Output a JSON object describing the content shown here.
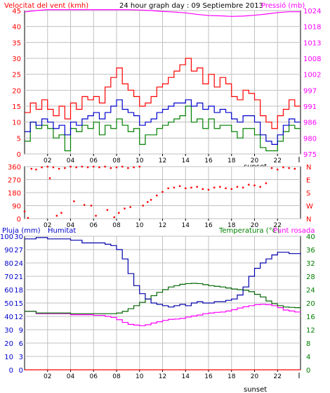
{
  "colors": {
    "wind": "#ff0000",
    "gust": "#ff0000",
    "avg": "#0000cc",
    "speed": "#008000",
    "pressure": "#ff00ff",
    "direction": "#ff0000",
    "humidity": "#0000aa",
    "temperature": "#006600",
    "dewpoint": "#ff00ff",
    "rain": "#ff0000",
    "axis_left": "#ff0000",
    "axis_right": "#ff00ff",
    "axis_blue": "#0000cc",
    "axis_green": "#008000",
    "grid": "#c0c0c0",
    "frame": "#000000"
  },
  "chart_data": [
    {
      "type": "line",
      "title": "24 hour graph day : 09 Septiembre 2013",
      "left_label": "Velocitat del vent (kmh)",
      "right_label": "Pressió (mb)",
      "yticks_left": [
        "0",
        "5",
        "10",
        "15",
        "20",
        "25",
        "30",
        "35",
        "40",
        "45"
      ],
      "ylim_left": [
        0,
        45
      ],
      "yticks_right": [
        "975",
        "980",
        "986",
        "991",
        "997",
        "1002",
        "1008",
        "1013",
        "1018",
        "1024"
      ],
      "ylim_right": [
        975,
        1024
      ],
      "xticks": [
        "02",
        "04",
        "06",
        "08",
        "10",
        "12",
        "14",
        "16",
        "18",
        "20",
        "22"
      ],
      "sunset_label": "sunset",
      "xlim": [
        0,
        24
      ],
      "series": [
        {
          "key": "gust",
          "x": [
            0,
            0.5,
            1,
            1.5,
            2,
            2.5,
            3,
            3.5,
            4,
            4.5,
            5,
            5.5,
            6,
            6.5,
            7,
            7.5,
            8,
            8.5,
            9,
            9.5,
            10,
            10.5,
            11,
            11.5,
            12,
            12.5,
            13,
            13.5,
            14,
            14.5,
            15,
            15.5,
            16,
            16.5,
            17,
            17.5,
            18,
            18.5,
            19,
            19.5,
            20,
            20.5,
            21,
            21.5,
            22,
            22.5,
            23,
            23.5,
            24
          ],
          "values": [
            13,
            16,
            14,
            17,
            14,
            12,
            15,
            11,
            16,
            14,
            18,
            17,
            18,
            16,
            21,
            24,
            27,
            22,
            20,
            18,
            15,
            16,
            18,
            21,
            22,
            24,
            26,
            28,
            30,
            26,
            27,
            22,
            25,
            21,
            24,
            22,
            18,
            17,
            20,
            19,
            17,
            12,
            10,
            8,
            12,
            14,
            17,
            15,
            15
          ]
        },
        {
          "key": "avg",
          "x": [
            0,
            0.5,
            1,
            1.5,
            2,
            2.5,
            3,
            3.5,
            4,
            4.5,
            5,
            5.5,
            6,
            6.5,
            7,
            7.5,
            8,
            8.5,
            9,
            9.5,
            10,
            10.5,
            11,
            11.5,
            12,
            12.5,
            13,
            13.5,
            14,
            14.5,
            15,
            15.5,
            16,
            16.5,
            17,
            17.5,
            18,
            18.5,
            19,
            19.5,
            20,
            20.5,
            21,
            21.5,
            22,
            22.5,
            23,
            23.5,
            24
          ],
          "values": [
            7,
            10,
            9,
            11,
            10,
            8,
            9,
            6,
            10,
            9,
            11,
            12,
            13,
            11,
            13,
            15,
            17,
            14,
            13,
            12,
            9,
            10,
            11,
            13,
            14,
            15,
            16,
            16,
            17,
            15,
            16,
            14,
            15,
            13,
            14,
            13,
            11,
            10,
            12,
            12,
            10,
            6,
            4,
            3,
            6,
            9,
            11,
            10,
            10
          ]
        },
        {
          "key": "speed",
          "x": [
            0,
            0.5,
            1,
            1.5,
            2,
            2.5,
            3,
            3.5,
            4,
            4.5,
            5,
            5.5,
            6,
            6.5,
            7,
            7.5,
            8,
            8.5,
            9,
            9.5,
            10,
            10.5,
            11,
            11.5,
            12,
            12.5,
            13,
            13.5,
            14,
            14.5,
            15,
            15.5,
            16,
            16.5,
            17,
            17.5,
            18,
            18.5,
            19,
            19.5,
            20,
            20.5,
            21,
            21.5,
            22,
            22.5,
            23,
            23.5,
            24
          ],
          "values": [
            4,
            10,
            8,
            9,
            8,
            5,
            6,
            1,
            8,
            7,
            9,
            8,
            10,
            6,
            9,
            8,
            11,
            9,
            7,
            8,
            3,
            6,
            6,
            8,
            9,
            10,
            11,
            12,
            15,
            10,
            11,
            8,
            11,
            8,
            9,
            9,
            7,
            5,
            8,
            8,
            6,
            2,
            1,
            1,
            4,
            7,
            9,
            8,
            8
          ]
        },
        {
          "key": "pressure",
          "x": [
            0,
            1,
            2,
            3,
            4,
            5,
            6,
            7,
            8,
            9,
            10,
            11,
            12,
            13,
            14,
            15,
            16,
            17,
            18,
            19,
            20,
            21,
            22,
            23,
            24
          ],
          "values": [
            1023.5,
            1024,
            1024.3,
            1024.3,
            1024.3,
            1024.3,
            1024.3,
            1024.3,
            1024.3,
            1024.3,
            1024.2,
            1024,
            1023.7,
            1023.5,
            1023.2,
            1022.7,
            1022.3,
            1022.2,
            1022,
            1022.1,
            1022.4,
            1022.8,
            1023.3,
            1023.6,
            1023.6
          ]
        }
      ]
    },
    {
      "type": "scatter",
      "title": "",
      "yticks_left": [
        "0",
        "90",
        "180",
        "270",
        "360"
      ],
      "ylim": [
        0,
        360
      ],
      "compass": [
        "N",
        "W",
        "S",
        "E",
        "N"
      ],
      "xticks": [
        "02",
        "04",
        "06",
        "08",
        "10",
        "12",
        "14",
        "16",
        "18",
        "20",
        "22"
      ],
      "xlim": [
        0,
        24
      ],
      "series": [
        {
          "key": "direction",
          "x": [
            0,
            0.3,
            0.6,
            1,
            1.5,
            2,
            2.5,
            3,
            3.5,
            4,
            4.5,
            5,
            5.5,
            6,
            6.5,
            7,
            7.5,
            8,
            8.5,
            9,
            9.5,
            10,
            10.3,
            10.7,
            11,
            11.5,
            12,
            12.5,
            13,
            13.5,
            14,
            14.5,
            15,
            15.5,
            16,
            16.5,
            17,
            17.5,
            18,
            18.5,
            19,
            19.5,
            20,
            20.5,
            21,
            21.5,
            22,
            22.5,
            23,
            23.5,
            2.2,
            2.8,
            3.2,
            4.3,
            5.2,
            5.8,
            6.2,
            7.2,
            7.8,
            8.2,
            8.7,
            9.2
          ],
          "values": [
            50,
            5,
            345,
            340,
            355,
            360,
            355,
            345,
            350,
            360,
            355,
            360,
            355,
            360,
            355,
            360,
            350,
            355,
            360,
            350,
            355,
            360,
            90,
            115,
            130,
            160,
            185,
            210,
            215,
            225,
            210,
            215,
            220,
            205,
            200,
            215,
            220,
            210,
            205,
            220,
            215,
            235,
            230,
            220,
            245,
            350,
            340,
            355,
            350,
            345,
            280,
            20,
            40,
            120,
            95,
            90,
            20,
            60,
            10,
            40,
            70,
            80
          ]
        }
      ]
    },
    {
      "type": "line",
      "title": "",
      "labels": {
        "rain": "Pluja (mm)",
        "humidity": "Humitat",
        "temperature": "Temperatura (°C)",
        "dewpoint": "Punt rosada"
      },
      "yticks_humidity": [
        "0",
        "10",
        "20",
        "30",
        "40",
        "50",
        "60",
        "70",
        "80",
        "90",
        "100"
      ],
      "ylim_humidity": [
        0,
        100
      ],
      "yticks_rain": [
        "0",
        "3",
        "6",
        "9",
        "12",
        "15",
        "18",
        "21",
        "24",
        "27",
        "30"
      ],
      "ylim_rain": [
        0,
        30
      ],
      "yticks_temp": [
        "0",
        "4",
        "8",
        "12",
        "16",
        "20",
        "24",
        "28",
        "32",
        "36",
        "40"
      ],
      "ylim_temp": [
        0,
        40
      ],
      "xticks": [
        "02",
        "04",
        "06",
        "08",
        "10",
        "12",
        "14",
        "16",
        "18",
        "20",
        "22"
      ],
      "sunset_label": "sunset",
      "xlim": [
        0,
        24
      ],
      "series": [
        {
          "key": "humidity",
          "x": [
            0,
            1,
            2,
            3,
            4,
            5,
            6,
            7,
            7.5,
            8,
            8.5,
            9,
            9.5,
            10,
            10.5,
            11,
            11.5,
            12,
            12.5,
            13,
            13.5,
            14,
            14.5,
            15,
            15.5,
            16,
            16.5,
            17,
            17.5,
            18,
            18.5,
            19,
            19.5,
            20,
            20.5,
            21,
            21.5,
            22,
            22.5,
            23,
            23.5,
            24
          ],
          "values": [
            98,
            99,
            98,
            98,
            97,
            95,
            95,
            94,
            93,
            90,
            83,
            72,
            63,
            57,
            53,
            50,
            49,
            48,
            47,
            48,
            49,
            48,
            50,
            51,
            50,
            50,
            51,
            51,
            52,
            53,
            56,
            62,
            70,
            76,
            80,
            83,
            86,
            88,
            88,
            87,
            87,
            86
          ]
        },
        {
          "key": "temperature",
          "x": [
            0,
            1,
            2,
            3,
            4,
            5,
            6,
            7,
            7.5,
            8,
            8.5,
            9,
            9.5,
            10,
            10.5,
            11,
            11.5,
            12,
            12.5,
            13,
            13.5,
            14,
            14.5,
            15,
            15.5,
            16,
            16.5,
            17,
            17.5,
            18,
            18.5,
            19,
            19.5,
            20,
            20.5,
            21,
            21.5,
            22,
            22.5,
            23,
            23.5,
            24
          ],
          "values": [
            17.5,
            17,
            17,
            17,
            16.8,
            16.8,
            16.8,
            16.8,
            16.8,
            17,
            17.5,
            18.3,
            19.2,
            20.2,
            21.2,
            22.2,
            23.2,
            24,
            24.8,
            25.2,
            25.6,
            25.8,
            25.9,
            25.8,
            25.5,
            25.2,
            25,
            24.8,
            24.5,
            24.2,
            24,
            23.8,
            23.4,
            22.6,
            21.8,
            20.6,
            19.8,
            19.2,
            18.8,
            18.7,
            18.6,
            18.5
          ]
        },
        {
          "key": "dewpoint",
          "x": [
            0,
            1,
            2,
            3,
            4,
            5,
            6,
            7,
            7.5,
            8,
            8.5,
            9,
            9.5,
            10,
            10.5,
            11,
            11.5,
            12,
            12.5,
            13,
            13.5,
            14,
            14.5,
            15,
            15.5,
            16,
            16.5,
            17,
            17.5,
            18,
            18.5,
            19,
            19.5,
            20,
            20.5,
            21,
            21.5,
            22,
            22.5,
            23,
            23.5,
            24
          ],
          "values": [
            17.5,
            16.8,
            16.8,
            16.8,
            16.5,
            16.5,
            16.3,
            16,
            15.7,
            15,
            14.2,
            13.6,
            13.4,
            13.2,
            13.5,
            14,
            14.4,
            14.8,
            15.1,
            15.2,
            15.4,
            15.8,
            16.1,
            16.4,
            16.8,
            17,
            17.2,
            17.3,
            17.6,
            18,
            18.5,
            18.9,
            19.2,
            19.5,
            19.6,
            19.5,
            19.2,
            18.6,
            17.9,
            17.6,
            17.3,
            17.2
          ]
        },
        {
          "key": "rain",
          "x": [
            0,
            24
          ],
          "values": [
            0,
            0
          ]
        }
      ]
    }
  ]
}
